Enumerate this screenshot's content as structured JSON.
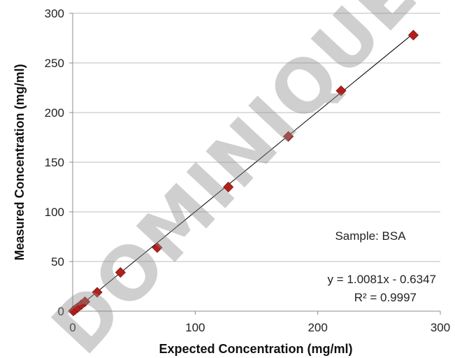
{
  "watermark": "DOMINIQUE",
  "chart_data": {
    "type": "scatter",
    "xlabel": "Expected Concentration (mg/ml)",
    "ylabel": "Measured Concentration (mg/ml)",
    "xlim": [
      0,
      300
    ],
    "ylim": [
      0,
      300
    ],
    "xticks": [
      0,
      100,
      200,
      300
    ],
    "yticks": [
      0,
      50,
      100,
      150,
      200,
      250,
      300
    ],
    "grid": "horizontal",
    "marker": "diamond",
    "marker_color": "#b3201c",
    "line_color": "#000000",
    "points": [
      {
        "x": 0.5,
        "y": 0.2
      },
      {
        "x": 2,
        "y": 1.5
      },
      {
        "x": 4,
        "y": 3.5
      },
      {
        "x": 7,
        "y": 6.5
      },
      {
        "x": 10,
        "y": 9.5
      },
      {
        "x": 20,
        "y": 19
      },
      {
        "x": 39,
        "y": 39
      },
      {
        "x": 69,
        "y": 64
      },
      {
        "x": 127,
        "y": 125
      },
      {
        "x": 176,
        "y": 176
      },
      {
        "x": 219,
        "y": 222
      },
      {
        "x": 278,
        "y": 278
      }
    ],
    "trendline": {
      "slope": 1.0081,
      "intercept": -0.6347,
      "x_range": [
        0,
        278
      ],
      "equation": "y = 1.0081x - 0.6347",
      "r_squared": "R² = 0.9997"
    },
    "annotation": "Sample: BSA"
  }
}
